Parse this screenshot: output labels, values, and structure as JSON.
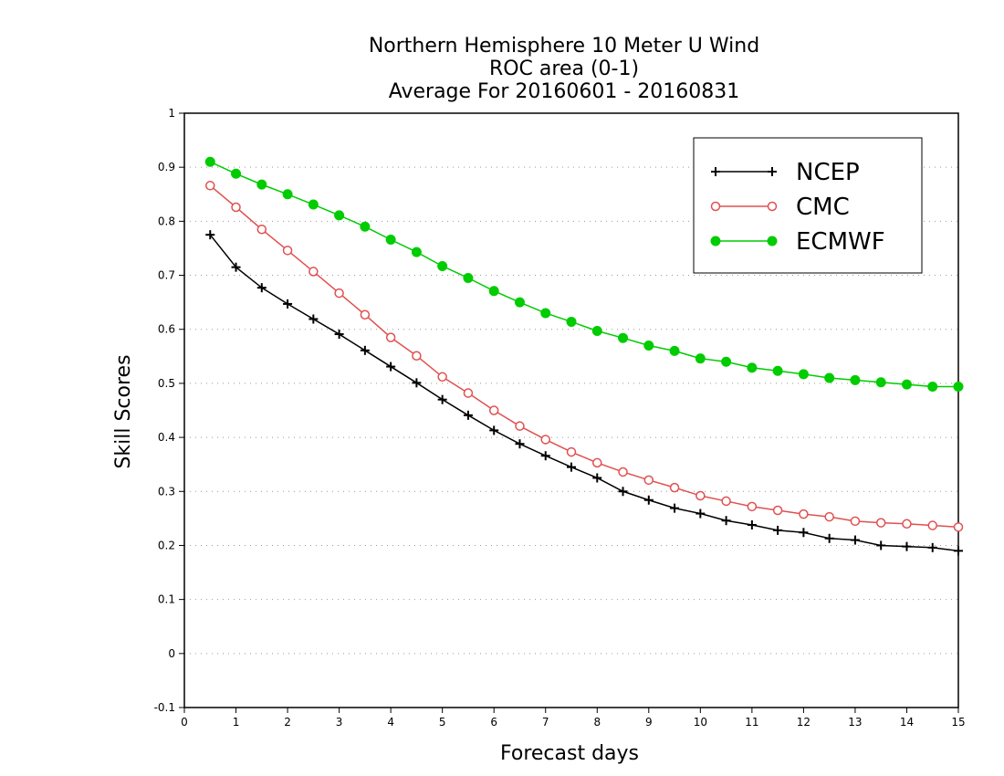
{
  "chart_data": {
    "type": "line",
    "title": [
      "Northern Hemisphere 10 Meter U Wind",
      "ROC area (0-1)",
      "Average For 20160601 - 20160831"
    ],
    "xlabel": "Forecast days",
    "ylabel": "Skill Scores",
    "xlim": [
      0,
      15
    ],
    "ylim": [
      -0.1,
      1
    ],
    "xticks": [
      "0",
      "1",
      "2",
      "3",
      "4",
      "5",
      "6",
      "7",
      "8",
      "9",
      "10",
      "11",
      "12",
      "13",
      "14",
      "15"
    ],
    "yticks": [
      "-0.1",
      "0",
      "0.1",
      "0.2",
      "0.3",
      "0.4",
      "0.5",
      "0.6",
      "0.7",
      "0.8",
      "0.9",
      "1"
    ],
    "grid": "horizontal dotted",
    "legend_position": "top-right",
    "x": [
      0.5,
      1,
      1.5,
      2,
      2.5,
      3,
      3.5,
      4,
      4.5,
      5,
      5.5,
      6,
      6.5,
      7,
      7.5,
      8,
      8.5,
      9,
      9.5,
      10,
      10.5,
      11,
      11.5,
      12,
      12.5,
      13,
      13.5,
      14,
      14.5,
      15
    ],
    "series": [
      {
        "name": "NCEP",
        "color": "#000000",
        "marker": "plus",
        "values": [
          0.775,
          0.715,
          0.677,
          0.647,
          0.619,
          0.591,
          0.561,
          0.531,
          0.501,
          0.47,
          0.441,
          0.413,
          0.388,
          0.366,
          0.345,
          0.325,
          0.3,
          0.284,
          0.269,
          0.259,
          0.246,
          0.238,
          0.228,
          0.224,
          0.213,
          0.21,
          0.2,
          0.198,
          0.196,
          0.19
        ]
      },
      {
        "name": "CMC",
        "color": "#e05050",
        "marker": "open-circle",
        "values": [
          0.866,
          0.826,
          0.785,
          0.746,
          0.707,
          0.667,
          0.627,
          0.585,
          0.551,
          0.512,
          0.482,
          0.45,
          0.421,
          0.396,
          0.373,
          0.353,
          0.336,
          0.321,
          0.307,
          0.292,
          0.282,
          0.272,
          0.265,
          0.258,
          0.253,
          0.245,
          0.242,
          0.24,
          0.237,
          0.234
        ]
      },
      {
        "name": "ECMWF",
        "color": "#00cc00",
        "marker": "filled-circle",
        "values": [
          0.91,
          0.888,
          0.868,
          0.85,
          0.831,
          0.811,
          0.79,
          0.766,
          0.743,
          0.717,
          0.695,
          0.671,
          0.65,
          0.63,
          0.614,
          0.597,
          0.584,
          0.57,
          0.56,
          0.546,
          0.54,
          0.529,
          0.523,
          0.517,
          0.51,
          0.506,
          0.502,
          0.498,
          0.494,
          0.494
        ]
      }
    ]
  }
}
